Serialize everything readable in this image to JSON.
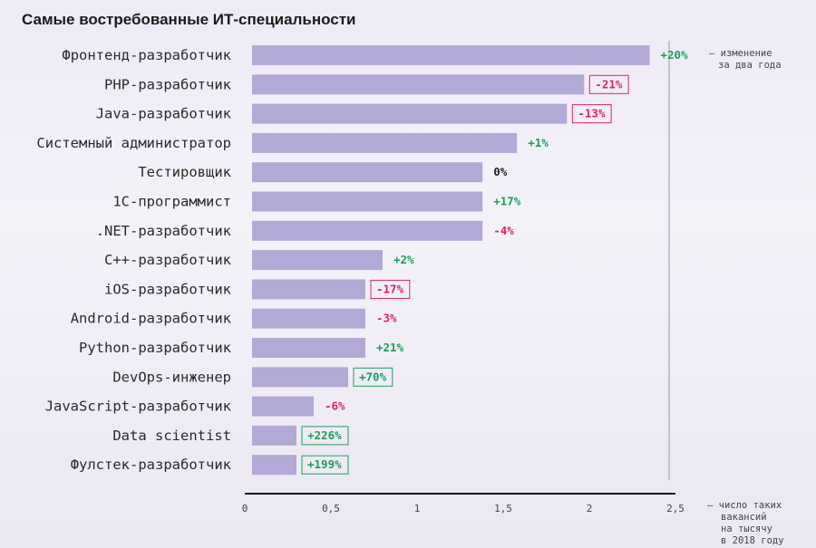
{
  "title": "Самые востребованные ИТ-специальности",
  "chart_data": {
    "type": "bar",
    "orientation": "horizontal",
    "title": "Самые востребованные ИТ-специальности",
    "categories": [
      "Фронтенд-разработчик",
      "PHP-разработчик",
      "Java-разработчик",
      "Системный администратор",
      "Тестировщик",
      "1С-программист",
      ".NET-разработчик",
      "C++-разработчик",
      "iOS-разработчик",
      "Android-разработчик",
      "Python-разработчик",
      "DevOps-инженер",
      "JavaScript-разработчик",
      "Data scientist",
      "Фулстек-разработчик"
    ],
    "values": [
      2.35,
      1.97,
      1.87,
      1.58,
      1.38,
      1.38,
      1.38,
      0.8,
      0.7,
      0.7,
      0.7,
      0.6,
      0.4,
      0.3,
      0.3
    ],
    "changes": [
      "+20%",
      "-21%",
      "-13%",
      "+1%",
      "0%",
      "+17%",
      "-4%",
      "+2%",
      "-17%",
      "-3%",
      "+21%",
      "+70%",
      "-6%",
      "+226%",
      "+199%"
    ],
    "change_boxed": [
      false,
      true,
      true,
      false,
      false,
      false,
      false,
      false,
      true,
      false,
      false,
      true,
      false,
      true,
      true
    ],
    "change_note": "– изменение за два года",
    "x_ticks": [
      "0",
      "0,5",
      "1",
      "1,5",
      "2",
      "2,5"
    ],
    "x_note": "– число таких вакансий на тысячу в 2018 году",
    "xlim": [
      0,
      2.5
    ],
    "grid": false,
    "colors": {
      "bar": "#b3a9d6",
      "positive": "#1f9e5a",
      "negative": "#e0245e",
      "neutral": "#222222"
    }
  }
}
